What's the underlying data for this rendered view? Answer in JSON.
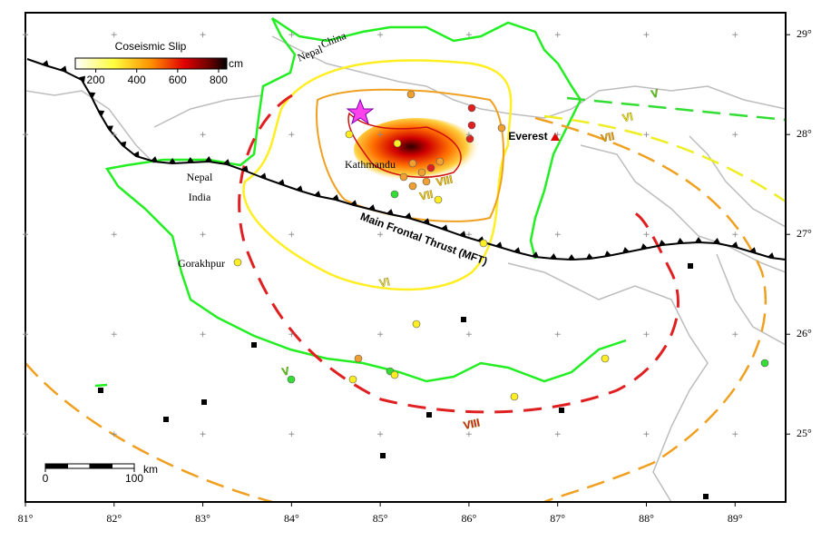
{
  "map": {
    "xlim": [
      81,
      89.57
    ],
    "ylim": [
      24.32,
      29.22
    ],
    "xticks": [
      {
        "value": 81,
        "label": "81°"
      },
      {
        "value": 82,
        "label": "82°"
      },
      {
        "value": 83,
        "label": "83°"
      },
      {
        "value": 84,
        "label": "84°"
      },
      {
        "value": 85,
        "label": "85°"
      },
      {
        "value": 86,
        "label": "86°"
      },
      {
        "value": 87,
        "label": "87°"
      },
      {
        "value": 88,
        "label": "88°"
      },
      {
        "value": 89,
        "label": "89°"
      }
    ],
    "yticks": [
      {
        "value": 25,
        "label": "25°"
      },
      {
        "value": 26,
        "label": "26°"
      },
      {
        "value": 27,
        "label": "27°"
      },
      {
        "value": 28,
        "label": "28°"
      },
      {
        "value": 29,
        "label": "29°"
      }
    ],
    "colorbar": {
      "title": "Coseismic Slip",
      "unit": "cm",
      "range": [
        100,
        840
      ],
      "ticks": [
        200,
        400,
        600,
        800
      ]
    },
    "places": [
      "China",
      "Nepal",
      "Nepal",
      "India",
      "Kathmandu",
      "Gorakhpur",
      "Everest"
    ],
    "fault": "Main Frontal Thrust (MFT)",
    "intensity_labels": [
      "V",
      "VI",
      "VII",
      "VIII",
      "VII",
      "VI",
      "V",
      "VIII"
    ],
    "scale_bar": {
      "ticks": [
        0,
        100
      ],
      "unit": "km"
    }
  }
}
